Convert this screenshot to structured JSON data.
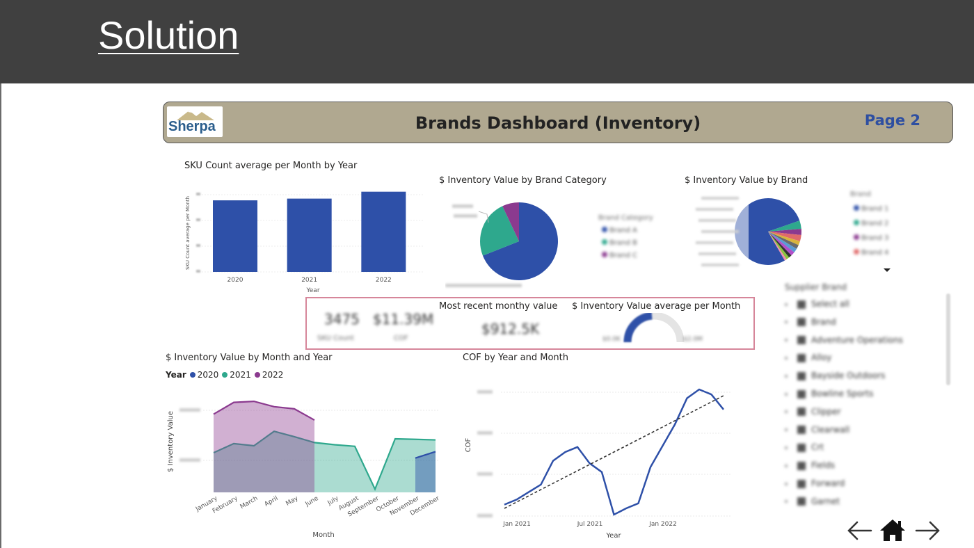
{
  "slide": {
    "title": "Solution"
  },
  "header": {
    "logo_text": "Sherpa",
    "title": "Brands Dashboard (Inventory)",
    "page_label": "Page 2"
  },
  "sku_chart": {
    "title": "SKU Count average per Month by Year",
    "xlabel": "Year",
    "ylabel": "SKU Count average per Month"
  },
  "cat_pie": {
    "title": "$ Inventory Value by Brand Category",
    "legend_title": "Brand Category",
    "legend_items": [
      "Brand A",
      "Brand B",
      "Brand C"
    ]
  },
  "brand_pie": {
    "title": "$ Inventory Value by Brand",
    "legend_title": "Brand",
    "legend_items": [
      "Brand 1",
      "Brand 2",
      "Brand 3",
      "Brand 4"
    ]
  },
  "kpis": {
    "value1": "3475",
    "label1": "SKU Count",
    "value2": "$11.39M",
    "label2": "COF",
    "recent_title": "Most recent monthy value",
    "recent_value": "$912.5K",
    "gauge_title": "$ Inventory Value average per Month",
    "gauge_min": "$0.0K",
    "gauge_max": "$2.0M"
  },
  "area_chart": {
    "title": "$ Inventory Value by Month and Year",
    "legend_label": "Year",
    "ylabel": "$ Inventory Value",
    "xlabel": "Month"
  },
  "cof_chart": {
    "title": "COF by Year and Month",
    "ylabel": "COF",
    "xlabel": "Year"
  },
  "slicer": {
    "title": "Supplier Brand",
    "items": [
      "Select all",
      "Brand",
      "Adventure Operations",
      "Alloy",
      "Bayside Outdoors",
      "Bowline Sports",
      "Clipper",
      "Clearwall",
      "Crt",
      "Fields",
      "Forward",
      "Garnet"
    ]
  },
  "colors": {
    "blue": "#2e50a8",
    "teal": "#2ea88d",
    "purple": "#8b3a8f",
    "header_bg": "#b0a890",
    "top_bar": "#404040",
    "kpi_border": "#d6869a"
  },
  "chart_data": [
    {
      "type": "bar",
      "title": "SKU Count average per Month by Year",
      "categories": [
        "2020",
        "2021",
        "2022"
      ],
      "values": [
        0.83,
        0.85,
        0.93
      ],
      "xlabel": "Year",
      "ylabel": "SKU Count average per Month"
    },
    {
      "type": "pie",
      "title": "$ Inventory Value by Brand Category",
      "labels": [
        "Brand A",
        "Brand B",
        "Brand C"
      ],
      "values": [
        69,
        24,
        7
      ]
    },
    {
      "type": "pie",
      "title": "$ Inventory Value by Brand",
      "labels": [
        "Brand 1",
        "others"
      ],
      "values": [
        80,
        20
      ]
    },
    {
      "type": "area",
      "title": "$ Inventory Value by Month and Year",
      "categories": [
        "January",
        "February",
        "March",
        "April",
        "May",
        "June",
        "July",
        "August",
        "September",
        "October",
        "November",
        "December"
      ],
      "series": [
        {
          "name": "2020",
          "values": [
            null,
            null,
            null,
            null,
            null,
            null,
            null,
            null,
            null,
            null,
            0.64,
            0.76
          ]
        },
        {
          "name": "2021",
          "values": [
            0.74,
            0.91,
            0.87,
            1.14,
            1.04,
            0.93,
            0.89,
            0.86,
            0.06,
            1.0,
            0.99,
            0.98
          ]
        },
        {
          "name": "2022",
          "values": [
            1.46,
            1.68,
            1.7,
            1.6,
            1.56,
            1.35,
            null,
            null,
            null,
            null,
            null,
            null
          ]
        }
      ],
      "xlabel": "Month",
      "ylabel": "$ Inventory Value"
    },
    {
      "type": "line",
      "title": "COF by Year and Month",
      "x_ticks": [
        "Jan 2021",
        "Jul 2021",
        "Jan 2022"
      ],
      "series": [
        {
          "values": [
            0.08,
            0.12,
            0.18,
            0.24,
            0.43,
            0.5,
            0.54,
            0.41,
            0.34,
            0.0,
            0.05,
            0.09,
            0.38,
            0.55,
            0.72,
            0.93,
            1.0,
            0.96,
            0.84
          ]
        }
      ],
      "trend": [
        0.05,
        0.95
      ],
      "xlabel": "Year",
      "ylabel": "COF"
    }
  ]
}
